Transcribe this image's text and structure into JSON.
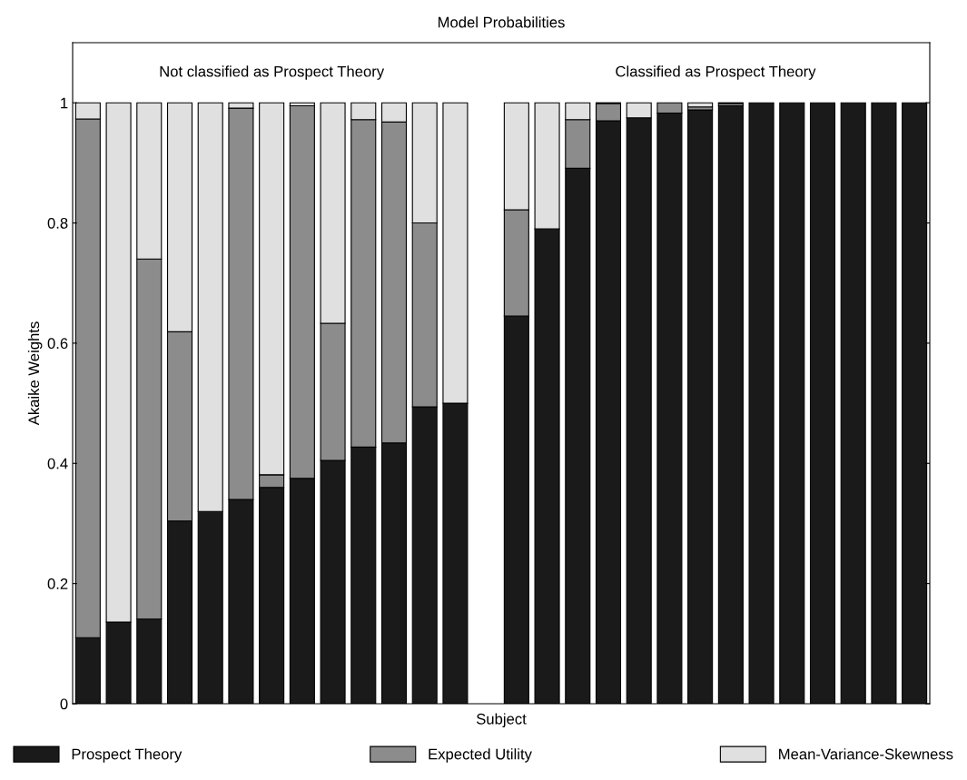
{
  "chart_data": {
    "type": "bar",
    "title": "Model Probabilities",
    "xlabel": "Subject",
    "ylabel": "Akaike Weights",
    "categories": [
      null,
      null,
      null,
      null,
      null,
      null,
      null,
      null,
      null,
      null,
      null,
      null,
      null,
      null,
      null,
      null,
      null,
      null,
      null,
      null,
      null,
      null,
      null,
      null,
      null,
      null,
      null,
      null
    ],
    "stacked": true,
    "series": [
      {
        "name": "Prospect Theory",
        "color": "#1a1a1a",
        "values": [
          0.11,
          0.136,
          0.141,
          0.304,
          0.32,
          0.34,
          0.36,
          0.375,
          0.405,
          0.427,
          0.434,
          0.494,
          0.5,
          null,
          0.645,
          0.79,
          0.891,
          0.97,
          0.975,
          0.983,
          0.988,
          0.995,
          1,
          1,
          1,
          1,
          1,
          1
        ]
      },
      {
        "name": "Expected Utility",
        "color": "#8c8c8c",
        "values": [
          0.863,
          0,
          0.599,
          0.315,
          0,
          0.651,
          0.021,
          0.62,
          0.228,
          0.545,
          0.534,
          0.306,
          0,
          null,
          0.177,
          0,
          0.081,
          0.029,
          0,
          0.017,
          0.005,
          0.004,
          0,
          0,
          0,
          0,
          0,
          0
        ]
      },
      {
        "name": "Mean-Variance-Skewness",
        "color": "#e0e0e0",
        "values": [
          0.027,
          0.864,
          0.26,
          0.381,
          0.68,
          0.009,
          0.619,
          0.005,
          0.367,
          0.028,
          0.032,
          0.2,
          0.5,
          null,
          0.178,
          0.21,
          0.028,
          0.001,
          0.025,
          0,
          0.007,
          0.001,
          0,
          0,
          0,
          0,
          0,
          0
        ]
      }
    ],
    "annotations": [
      "Not classified as Prospect Theory",
      "Classified as Prospect Theory"
    ],
    "ylim": [
      0,
      1.1
    ],
    "yticks": [
      0,
      0.2,
      0.4,
      0.6,
      0.8,
      1
    ],
    "legend": "bottom",
    "grid": false
  }
}
